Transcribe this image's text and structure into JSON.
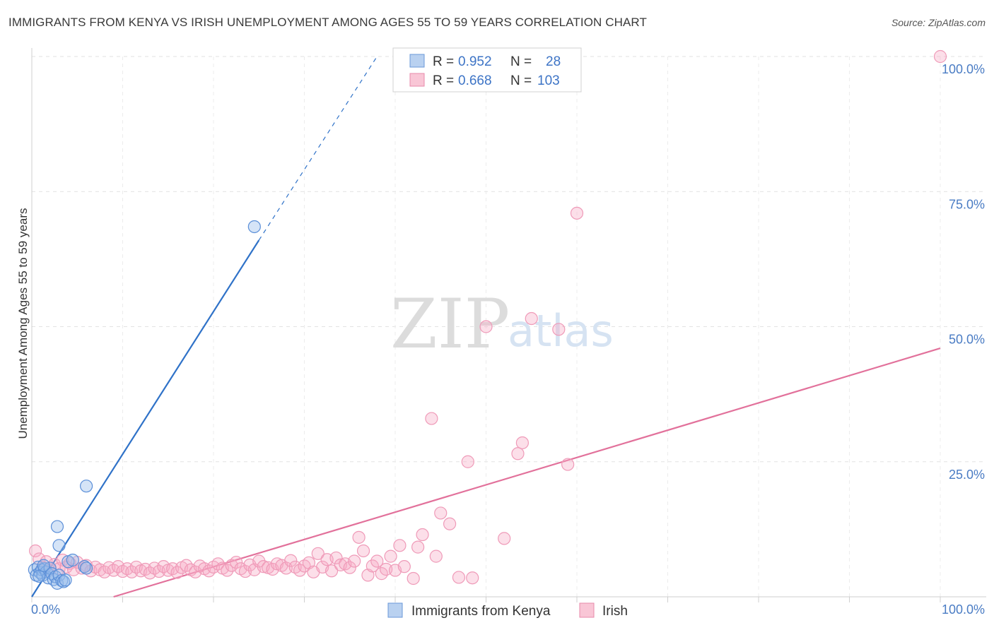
{
  "title": "IMMIGRANTS FROM KENYA VS IRISH UNEMPLOYMENT AMONG AGES 55 TO 59 YEARS CORRELATION CHART",
  "source": "Source: ZipAtlas.com",
  "watermark": {
    "part1": "ZIP",
    "part2": "atlas"
  },
  "legend": {
    "r_label": "R =",
    "n_label": "N =",
    "rows": [
      {
        "r": "0.952",
        "n": "28"
      },
      {
        "r": "0.668",
        "n": "103"
      }
    ]
  },
  "chart_data": {
    "type": "scatter",
    "title": "IMMIGRANTS FROM KENYA VS IRISH UNEMPLOYMENT AMONG AGES 55 TO 59 YEARS CORRELATION CHART",
    "xlabel": "",
    "ylabel": "Unemployment Among Ages 55 to 59 years",
    "xlim": [
      0,
      100
    ],
    "ylim": [
      0,
      100
    ],
    "x_tick_labels": [
      "0.0%",
      "100.0%"
    ],
    "y_ticks": [
      25,
      50,
      75,
      100
    ],
    "y_tick_labels": [
      "25.0%",
      "50.0%",
      "75.0%",
      "100.0%"
    ],
    "grid": true,
    "legend_position": "top-center",
    "colors": {
      "kenya": "#5b8fd8",
      "irish": "#ec7fa4",
      "kenya_line": "#2f72c8",
      "irish_line": "#e2719b"
    },
    "series": [
      {
        "name": "Immigrants from Kenya",
        "r": 0.952,
        "n": 28,
        "trendline": {
          "x": [
            0,
            25
          ],
          "y": [
            0,
            66
          ],
          "dashed_extension_to": [
            38,
            100
          ]
        },
        "points": [
          [
            0.3,
            5
          ],
          [
            0.5,
            4
          ],
          [
            0.7,
            5.5
          ],
          [
            0.9,
            4.5
          ],
          [
            1.1,
            5
          ],
          [
            1.2,
            4
          ],
          [
            1.4,
            5.2
          ],
          [
            1.6,
            4.6
          ],
          [
            1.8,
            3.5
          ],
          [
            2.0,
            5.3
          ],
          [
            2.2,
            4.3
          ],
          [
            2.4,
            3.2
          ],
          [
            2.6,
            3.7
          ],
          [
            2.8,
            2.5
          ],
          [
            3.0,
            4.0
          ],
          [
            3.3,
            3.0
          ],
          [
            3.5,
            2.8
          ],
          [
            3.7,
            3.1
          ],
          [
            0.8,
            3.8
          ],
          [
            1.3,
            5.8
          ],
          [
            4.0,
            6.5
          ],
          [
            4.5,
            6.8
          ],
          [
            3.0,
            9.5
          ],
          [
            2.8,
            13
          ],
          [
            5.8,
            5.6
          ],
          [
            6.0,
            5.3
          ],
          [
            6.0,
            20.5
          ],
          [
            24.5,
            68.5
          ]
        ]
      },
      {
        "name": "Irish",
        "r": 0.668,
        "n": 103,
        "trendline": {
          "x": [
            9,
            100
          ],
          "y": [
            0,
            46
          ]
        },
        "points": [
          [
            0.4,
            8.5
          ],
          [
            0.8,
            7
          ],
          [
            1.2,
            5.5
          ],
          [
            1.6,
            6.5
          ],
          [
            2.0,
            5
          ],
          [
            2.5,
            6
          ],
          [
            3.0,
            5.2
          ],
          [
            3.4,
            6.8
          ],
          [
            3.8,
            5.5
          ],
          [
            4.2,
            6.2
          ],
          [
            4.6,
            5
          ],
          [
            5.0,
            6.4
          ],
          [
            5.5,
            5.3
          ],
          [
            6.0,
            5.8
          ],
          [
            6.5,
            4.8
          ],
          [
            7.0,
            5.5
          ],
          [
            7.5,
            5
          ],
          [
            8.0,
            4.6
          ],
          [
            8.5,
            5.4
          ],
          [
            9.0,
            4.9
          ],
          [
            9.5,
            5.6
          ],
          [
            10,
            4.7
          ],
          [
            10.5,
            5.2
          ],
          [
            11,
            4.6
          ],
          [
            11.5,
            5.5
          ],
          [
            12,
            4.8
          ],
          [
            12.5,
            5.1
          ],
          [
            13,
            4.4
          ],
          [
            13.5,
            5.3
          ],
          [
            14,
            4.7
          ],
          [
            14.5,
            5.6
          ],
          [
            15,
            4.9
          ],
          [
            15.5,
            5.2
          ],
          [
            16,
            4.5
          ],
          [
            16.5,
            5.4
          ],
          [
            17,
            5.8
          ],
          [
            17.5,
            5.0
          ],
          [
            18,
            4.6
          ],
          [
            18.5,
            5.7
          ],
          [
            19,
            5.2
          ],
          [
            19.5,
            4.8
          ],
          [
            20,
            5.5
          ],
          [
            20.5,
            6.1
          ],
          [
            21,
            5.3
          ],
          [
            21.5,
            4.9
          ],
          [
            22,
            5.8
          ],
          [
            22.5,
            6.4
          ],
          [
            23,
            5.2
          ],
          [
            23.5,
            4.7
          ],
          [
            24,
            5.9
          ],
          [
            24.5,
            5.0
          ],
          [
            25,
            6.6
          ],
          [
            25.5,
            5.6
          ],
          [
            26,
            5.4
          ],
          [
            26.5,
            5.1
          ],
          [
            27,
            6.1
          ],
          [
            27.5,
            5.8
          ],
          [
            28,
            5.3
          ],
          [
            28.5,
            6.7
          ],
          [
            29,
            5.5
          ],
          [
            29.5,
            4.9
          ],
          [
            30,
            5.7
          ],
          [
            30.5,
            6.3
          ],
          [
            31,
            4.6
          ],
          [
            31.5,
            8.0
          ],
          [
            32,
            5.5
          ],
          [
            32.5,
            6.9
          ],
          [
            33,
            4.8
          ],
          [
            33.5,
            7.2
          ],
          [
            34,
            5.9
          ],
          [
            34.5,
            6.1
          ],
          [
            35,
            5.4
          ],
          [
            35.5,
            6.6
          ],
          [
            36,
            11.0
          ],
          [
            36.5,
            8.5
          ],
          [
            37,
            4.0
          ],
          [
            37.5,
            5.7
          ],
          [
            38,
            6.6
          ],
          [
            38.5,
            4.3
          ],
          [
            39,
            5.1
          ],
          [
            39.5,
            7.5
          ],
          [
            40,
            4.9
          ],
          [
            40.5,
            9.5
          ],
          [
            41,
            5.6
          ],
          [
            42,
            3.4
          ],
          [
            42.5,
            9.2
          ],
          [
            43,
            11.5
          ],
          [
            44,
            33
          ],
          [
            44.5,
            7.5
          ],
          [
            45,
            15.5
          ],
          [
            46,
            13.5
          ],
          [
            47,
            3.6
          ],
          [
            48,
            25
          ],
          [
            48.5,
            3.5
          ],
          [
            50,
            50
          ],
          [
            52,
            10.8
          ],
          [
            53.5,
            26.5
          ],
          [
            54,
            28.5
          ],
          [
            55,
            51.5
          ],
          [
            58,
            49.5
          ],
          [
            59,
            24.5
          ],
          [
            60,
            71
          ],
          [
            100,
            100
          ]
        ]
      }
    ]
  },
  "bottom_legend": [
    "Immigrants from Kenya",
    "Irish"
  ]
}
